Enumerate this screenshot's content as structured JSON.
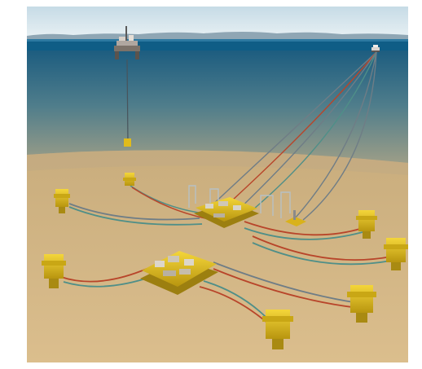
{
  "scene": {
    "subject": "subsea-production-field",
    "colors": {
      "frame": "#ffffff",
      "sky_top": "#c6dbe6",
      "sky_bottom": "#e9f1f4",
      "mountains": "#8fa6b4",
      "sea_surface": "#0f5d86",
      "water_top": "#1d5d80",
      "water_mid": "#6d8b8c",
      "seabed_far": "#c9ad7d",
      "seabed_near": "#d8bb8a",
      "structure_yellow": "#e8c21a",
      "structure_shadow": "#9c7f10",
      "pipe_red": "#b8452a",
      "pipe_teal": "#4f8f88",
      "pipe_grey": "#6f7d86",
      "riser": "#48545c"
    }
  }
}
